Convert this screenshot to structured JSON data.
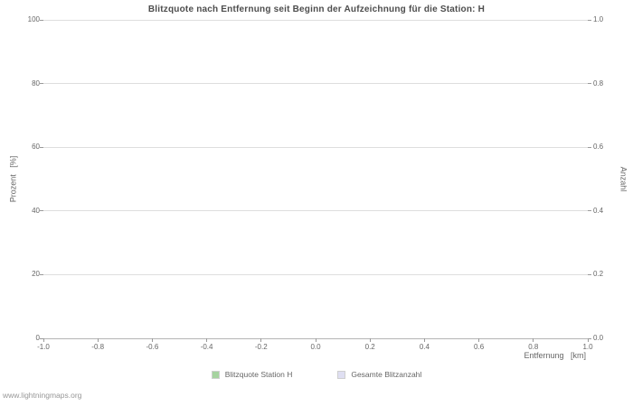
{
  "watermark": "www.lightningmaps.org",
  "chart_data": {
    "type": "line",
    "title": "Blitzquote nach Entfernung seit Beginn der Aufzeichnung für die Station: H",
    "xlabel": "Entfernung   [km]",
    "ylabel_left": "Prozent   [%]",
    "ylabel_right": "Anzahl",
    "xlim": [
      -1.0,
      1.0
    ],
    "ylim_left": [
      0,
      100
    ],
    "ylim_right": [
      0.0,
      1.0
    ],
    "x_tick_labels": [
      "-1.0",
      "-0.8",
      "-0.6",
      "-0.4",
      "-0.2",
      "0.0",
      "0.2",
      "0.4",
      "0.6",
      "0.8",
      "1.0"
    ],
    "y_ticks_left": [
      "0",
      "20",
      "40",
      "60",
      "80",
      "100"
    ],
    "y_ticks_right": [
      "0.0",
      "0.2",
      "0.4",
      "0.6",
      "0.8",
      "1.0"
    ],
    "grid": "horizontal-only",
    "legend_position": "bottom-center",
    "background": "#ffffff",
    "series": [
      {
        "name": "Blitzquote Station H",
        "color": "#a6d3a0",
        "values": []
      },
      {
        "name": "Gesamte Blitzanzahl",
        "color": "#dfdff2",
        "values": []
      }
    ]
  }
}
